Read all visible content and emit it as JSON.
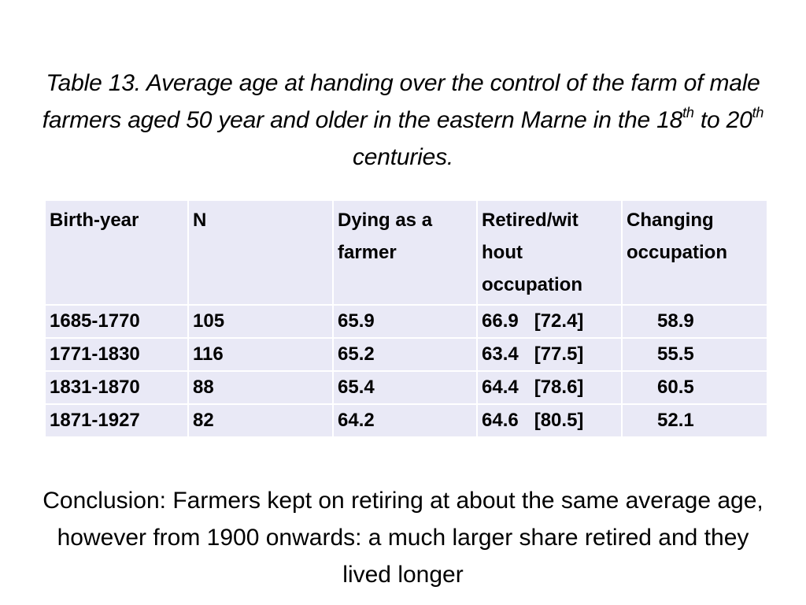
{
  "title": {
    "part1": "Table 13. Average age at handing over the control of the farm of male farmers aged 50 year and older in the eastern Marne in the 18",
    "sup1": "th",
    "part2": " to 20",
    "sup2": "th",
    "part3": " centuries."
  },
  "table": {
    "headers": [
      "Birth-year",
      "N",
      "Dying as a farmer",
      "Retired/without occupation",
      "Changing occupation"
    ],
    "header_display": {
      "retired_line1": "Retired/wit",
      "retired_line2": "hout",
      "retired_line3": "occupation"
    },
    "rows": [
      {
        "birth_year": "1685-1770",
        "n": "105",
        "dying": "65.9",
        "retired": "66.9",
        "retired_bracket": "[72.4]",
        "changing": "58.9"
      },
      {
        "birth_year": "1771-1830",
        "n": "116",
        "dying": "65.2",
        "retired": "63.4",
        "retired_bracket": "[77.5]",
        "changing": "55.5"
      },
      {
        "birth_year": "1831-1870",
        "n": "88",
        "dying": "65.4",
        "retired": "64.4",
        "retired_bracket": "[78.6]",
        "changing": "60.5"
      },
      {
        "birth_year": "1871-1927",
        "n": "82",
        "dying": "64.2",
        "retired": "64.6",
        "retired_bracket": "[80.5]",
        "changing": "52.1"
      }
    ]
  },
  "conclusion": "Conclusion: Farmers kept on retiring at about the same average age, however from 1900 onwards: a much larger share retired and they lived longer"
}
